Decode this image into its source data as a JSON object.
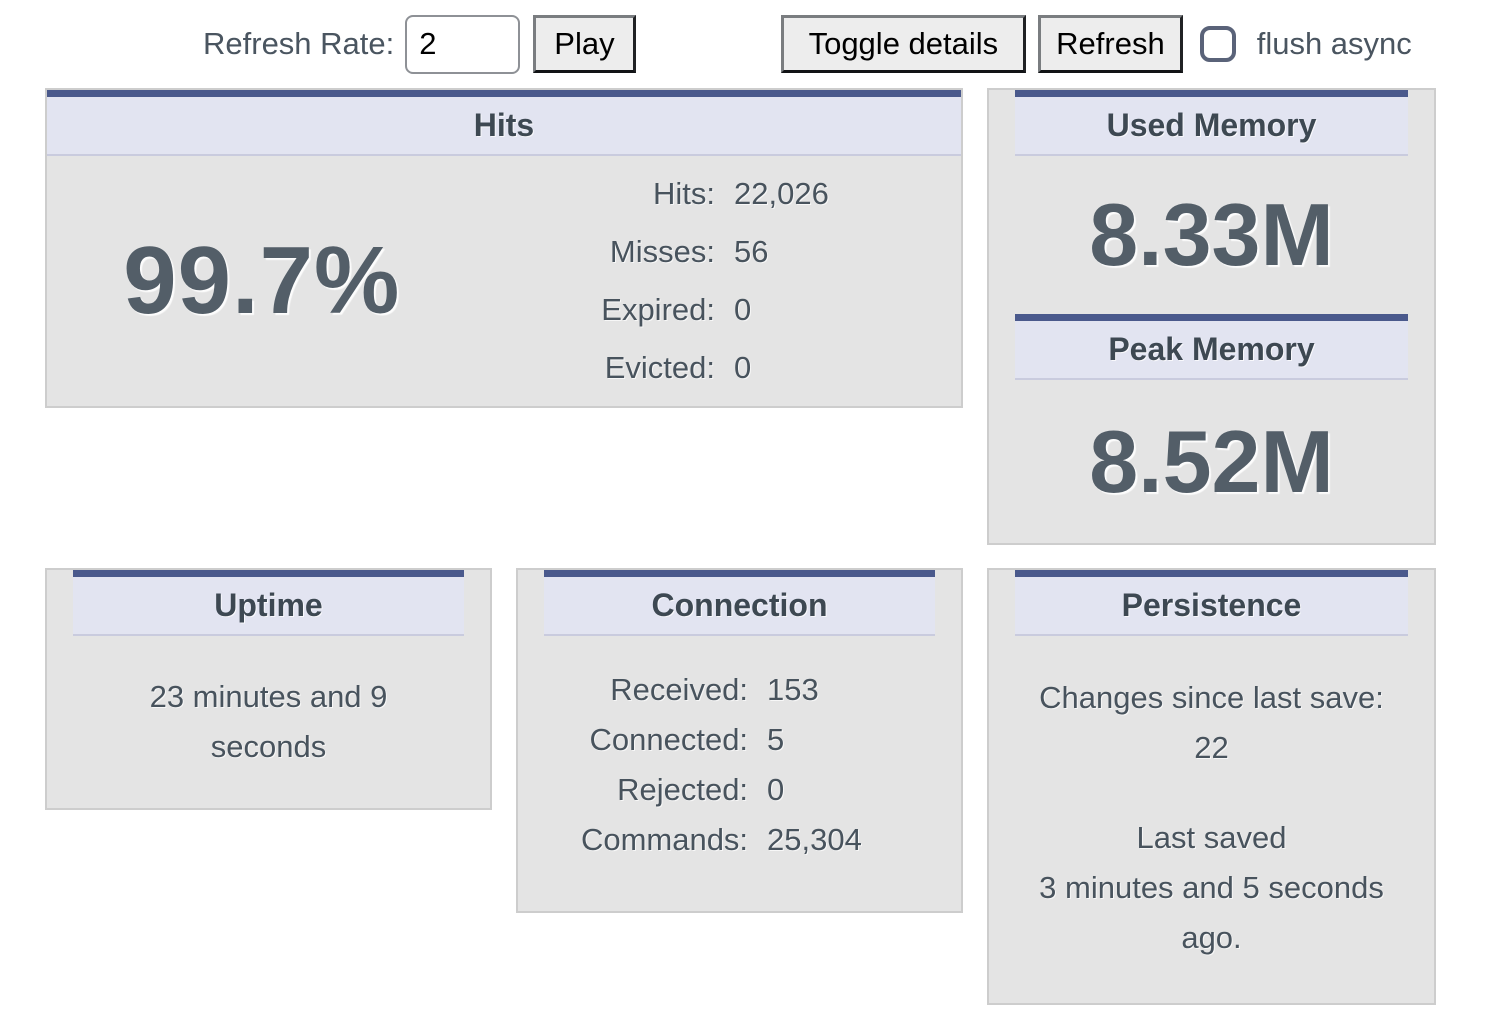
{
  "toolbar": {
    "refresh_rate_label": "Refresh Rate:",
    "refresh_rate_value": "2",
    "play_label": "Play",
    "toggle_details_label": "Toggle details",
    "refresh_label": "Refresh",
    "flush_async_label": "flush async",
    "flush_async_checked": false
  },
  "panels": {
    "hits": {
      "title": "Hits",
      "percentage": "99.7%",
      "rows": [
        {
          "label": "Hits:",
          "value": "22,026"
        },
        {
          "label": "Misses:",
          "value": "56"
        },
        {
          "label": "Expired:",
          "value": "0"
        },
        {
          "label": "Evicted:",
          "value": "0"
        }
      ]
    },
    "memory": {
      "used_title": "Used Memory",
      "used_value": "8.33M",
      "peak_title": "Peak Memory",
      "peak_value": "8.52M"
    },
    "uptime": {
      "title": "Uptime",
      "value": "23 minutes and 9 seconds"
    },
    "connection": {
      "title": "Connection",
      "rows": [
        {
          "label": "Received:",
          "value": "153"
        },
        {
          "label": "Connected:",
          "value": "5"
        },
        {
          "label": "Rejected:",
          "value": "0"
        },
        {
          "label": "Commands:",
          "value": "25,304"
        }
      ]
    },
    "persistence": {
      "title": "Persistence",
      "changes_label": "Changes since last save:",
      "changes_value": "22",
      "last_saved_line1": "Last saved",
      "last_saved_line2": "3 minutes and 5 seconds ago."
    }
  },
  "colors": {
    "header_accent_blue": "#4a598c",
    "header_background": "#e2e4f1",
    "header_divider": "#c9cbde",
    "panel_background": "#e4e4e4",
    "panel_border": "#cdcdcd",
    "text_slate": "#48535d",
    "big_number": "#535e68"
  }
}
